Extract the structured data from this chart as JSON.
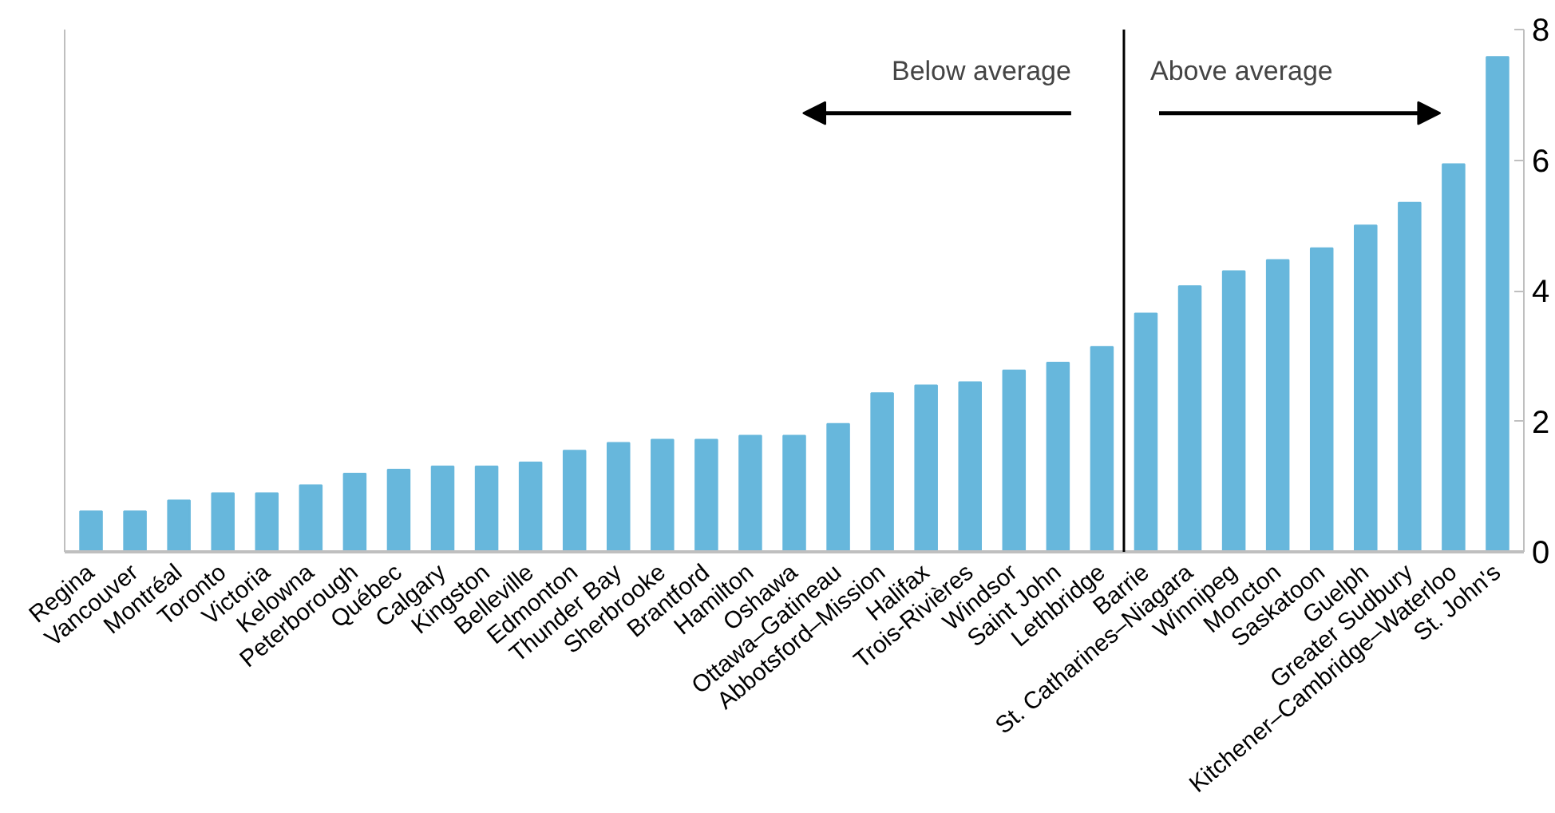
{
  "chart_data": {
    "type": "bar",
    "categories": [
      "Regina",
      "Vancouver",
      "Montréal",
      "Toronto",
      "Victoria",
      "Kelowna",
      "Peterborough",
      "Québec",
      "Calgary",
      "Kingston",
      "Belleville",
      "Edmonton",
      "Thunder Bay",
      "Sherbrooke",
      "Brantford",
      "Hamilton",
      "Oshawa",
      "Ottawa–Gatineau",
      "Abbotsford–Mission",
      "Halifax",
      "Trois-Rivières",
      "Windsor",
      "Saint John",
      "Lethbridge",
      "Barrie",
      "St. Catharines–Niagara",
      "Winnipeg",
      "Moncton",
      "Saskatoon",
      "Guelph",
      "Greater Sudbury",
      "Kitchener–Cambridge–Waterloo",
      "St. John's"
    ],
    "values": [
      0.62,
      0.62,
      0.79,
      0.9,
      0.9,
      1.02,
      1.2,
      1.26,
      1.31,
      1.31,
      1.37,
      1.55,
      1.67,
      1.72,
      1.72,
      1.78,
      1.78,
      1.96,
      2.43,
      2.55,
      2.6,
      2.78,
      2.9,
      3.14,
      3.65,
      4.07,
      4.3,
      4.47,
      4.65,
      5.0,
      5.35,
      5.94,
      7.58
    ],
    "color": "#67b7dc",
    "ylim": [
      0,
      8
    ],
    "yticks": [
      0,
      2,
      4,
      6,
      8
    ],
    "grid": false,
    "annotations": [
      "Below average",
      "Above average"
    ]
  }
}
